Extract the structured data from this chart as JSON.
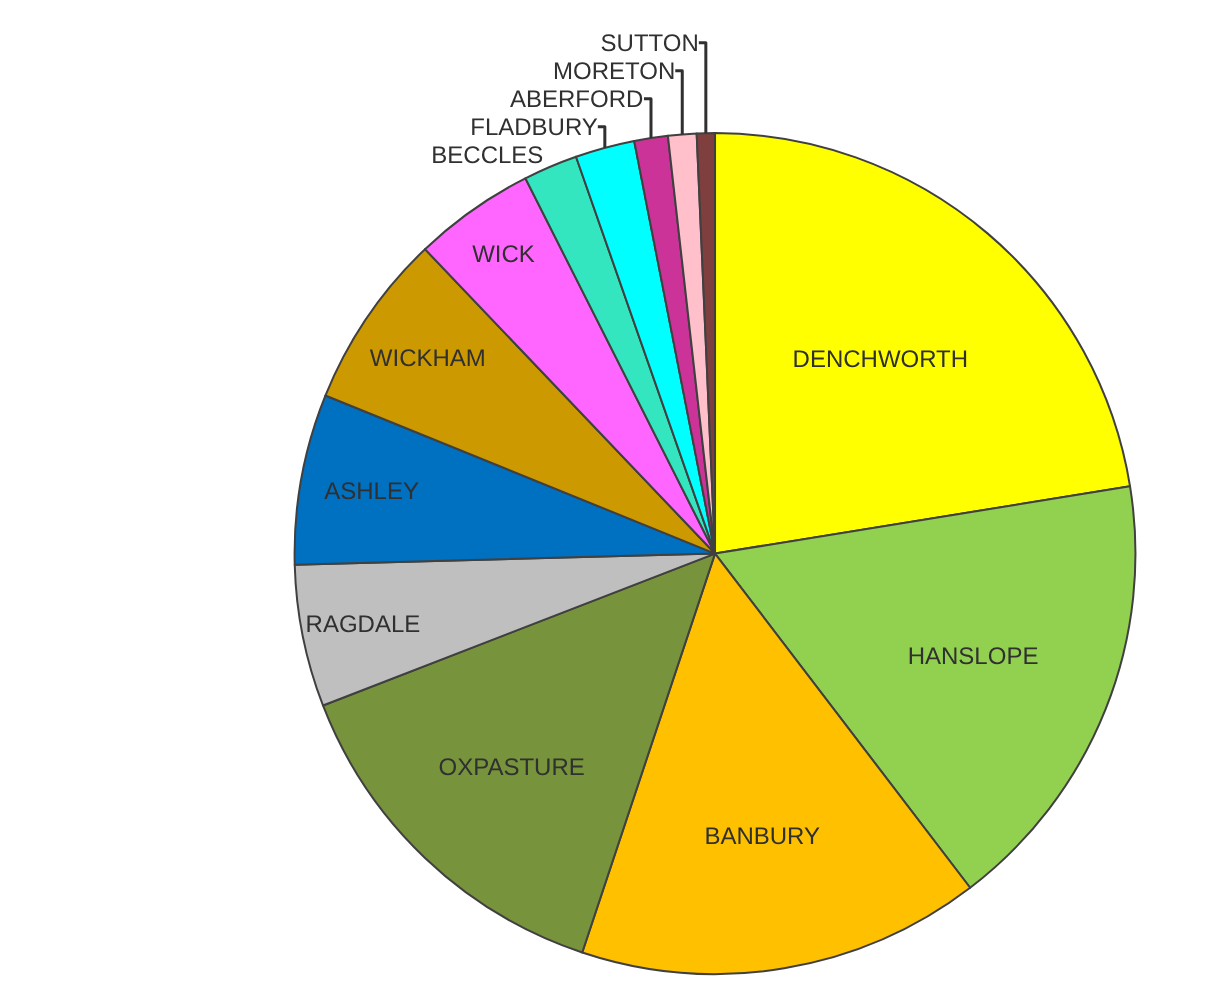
{
  "chart_data": {
    "type": "pie",
    "categories": [
      "DENCHWORTH",
      "HANSLOPE",
      "BANBURY",
      "OXPASTURE",
      "RAGDALE",
      "ASHLEY",
      "WICKHAM",
      "WICK",
      "BECCLES",
      "FLADBURY",
      "ABERFORD",
      "MORETON",
      "SUTTON"
    ],
    "values": [
      22.6,
      17.3,
      15.6,
      14.1,
      5.5,
      6.6,
      6.8,
      4.7,
      2.1,
      2.3,
      1.3,
      1.1,
      0.7
    ],
    "colors": [
      "#ffff00",
      "#92d050",
      "#ffc000",
      "#77933c",
      "#bfbfbf",
      "#0070c0",
      "#cc9900",
      "#ff66ff",
      "#33e6bf",
      "#00ffff",
      "#cc3399",
      "#ffc0cb",
      "#7f3f3f"
    ],
    "legend": false
  }
}
